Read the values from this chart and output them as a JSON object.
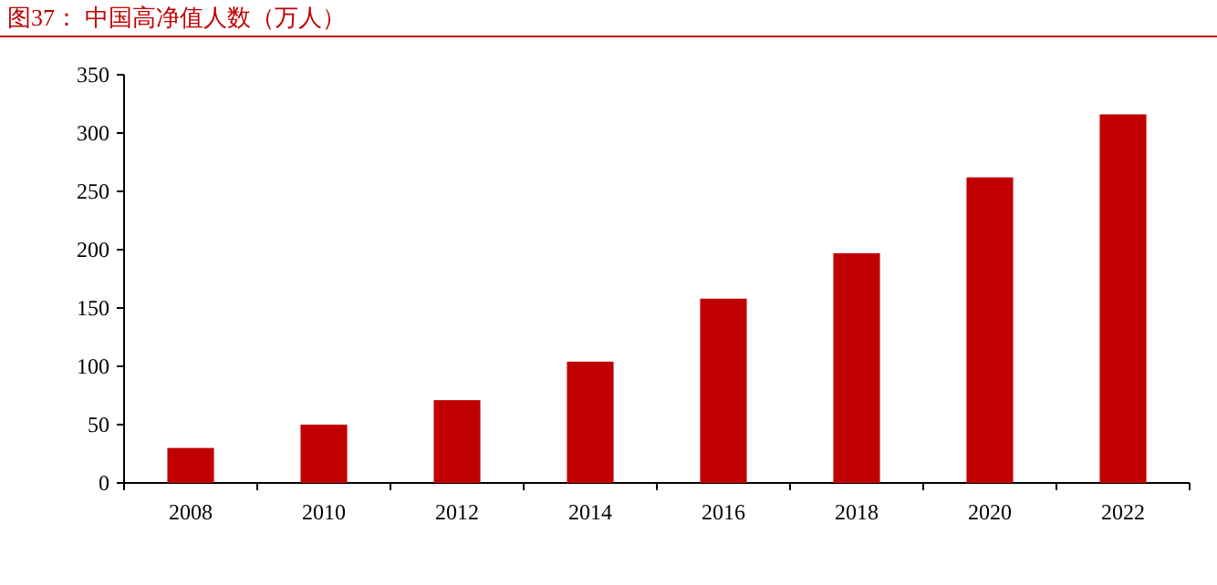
{
  "chart_data": {
    "type": "bar",
    "title": "图37：  中国高净值人数（万人）",
    "categories": [
      "2008",
      "2010",
      "2012",
      "2014",
      "2016",
      "2018",
      "2020",
      "2022"
    ],
    "values": [
      30,
      50,
      71,
      104,
      158,
      197,
      262,
      316
    ],
    "color": "#c00000",
    "ylim": [
      0,
      350
    ],
    "yticks": [
      0,
      50,
      100,
      150,
      200,
      250,
      300,
      350
    ],
    "grid": false
  }
}
